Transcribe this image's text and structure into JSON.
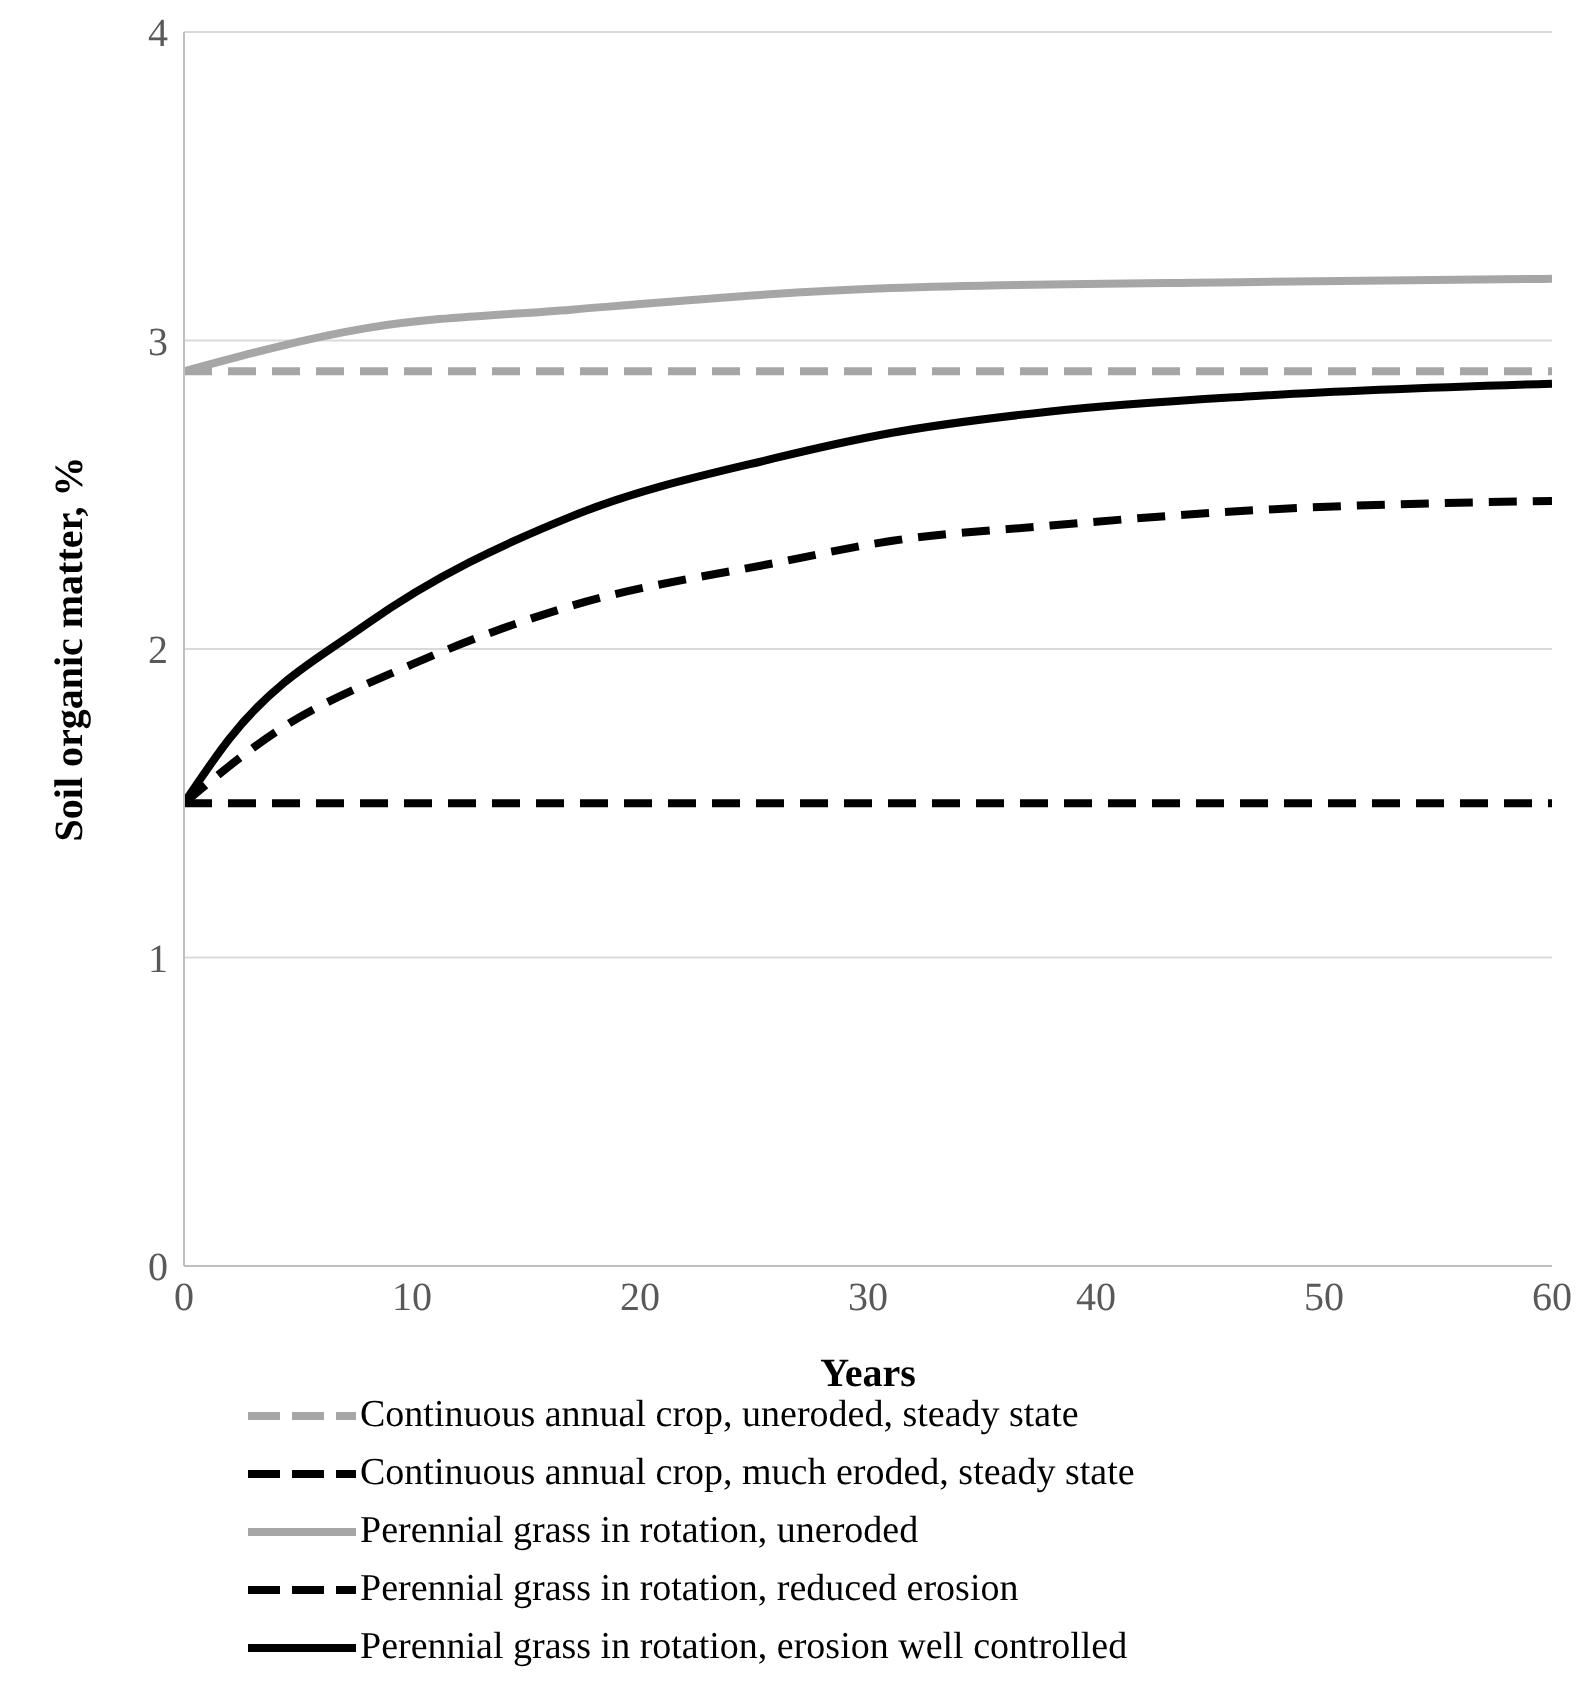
{
  "chart_data": {
    "type": "line",
    "xlabel": "Years",
    "ylabel": "Soil organic matter, %",
    "xlim": [
      0,
      60
    ],
    "xticks": [
      0,
      10,
      20,
      30,
      40,
      50,
      60
    ],
    "ylim": [
      0,
      4
    ],
    "yticks": [
      0,
      1,
      2,
      3,
      4
    ],
    "grid": "y",
    "legend": "bottom",
    "marker": "none",
    "series": [
      {
        "name": "Continuous annual crop, uneroded, steady state",
        "color": "#a6a6a6",
        "line_style": "dashed",
        "x": [
          0,
          60
        ],
        "values": [
          2.9,
          2.9
        ]
      },
      {
        "name": "Continuous annual crop, much eroded, steady state",
        "color": "#000000",
        "line_style": "dashed",
        "x": [
          0,
          60
        ],
        "values": [
          1.5,
          1.5
        ]
      },
      {
        "name": "Perennial grass in rotation, uneroded",
        "color": "#a6a6a6",
        "line_style": "solid",
        "x": [
          0,
          8,
          17,
          31,
          47,
          60
        ],
        "values": [
          2.9,
          3.04,
          3.1,
          3.17,
          3.19,
          3.2
        ]
      },
      {
        "name": "Perennial grass in rotation, reduced erosion",
        "color": "#000000",
        "line_style": "dashed",
        "x": [
          0,
          4,
          10,
          17,
          26,
          31,
          38,
          47,
          60
        ],
        "values": [
          1.5,
          1.73,
          1.95,
          2.14,
          2.28,
          2.35,
          2.4,
          2.45,
          2.48
        ]
      },
      {
        "name": "Perennial grass in rotation, erosion well controlled",
        "color": "#000000",
        "line_style": "solid",
        "x": [
          0,
          2,
          8,
          17,
          26,
          31,
          38,
          47,
          60
        ],
        "values": [
          1.5,
          1.71,
          2.08,
          2.43,
          2.62,
          2.7,
          2.77,
          2.82,
          2.86
        ]
      }
    ]
  }
}
